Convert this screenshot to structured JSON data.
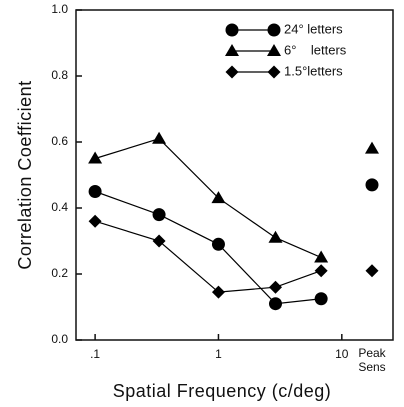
{
  "chart_data": {
    "type": "line",
    "xlabel": "Spatial Frequency (c/deg)",
    "ylabel": "Correlation Coefficient",
    "x": [
      0.1,
      0.33,
      1,
      2.9,
      6.8
    ],
    "xlog": true,
    "xlim": [
      0.07,
      26
    ],
    "xticks": [
      {
        "value": 0.1,
        "label": ".1"
      },
      1,
      10
    ],
    "ylim": [
      0,
      1
    ],
    "yticks": [
      {
        "value": 0,
        "label": "0.0"
      },
      0.2,
      0.4,
      0.6,
      0.8,
      {
        "value": 1,
        "label": "1.0"
      }
    ],
    "peak_label": [
      "Peak",
      "Sens"
    ],
    "legend": "upper right",
    "series": [
      {
        "name": "24° letters",
        "color": "#000000",
        "marker": "circle",
        "values": [
          0.45,
          0.38,
          0.29,
          0.11,
          0.125
        ],
        "peak": 0.47
      },
      {
        "name": "6°    letters",
        "color": "#000000",
        "marker": "triangle",
        "values": [
          0.55,
          0.61,
          0.43,
          0.31,
          0.25
        ],
        "peak": 0.58
      },
      {
        "name": "1.5°letters",
        "color": "#000000",
        "marker": "diamond",
        "values": [
          0.36,
          0.3,
          0.145,
          0.16,
          0.21
        ],
        "peak": 0.21
      }
    ]
  }
}
